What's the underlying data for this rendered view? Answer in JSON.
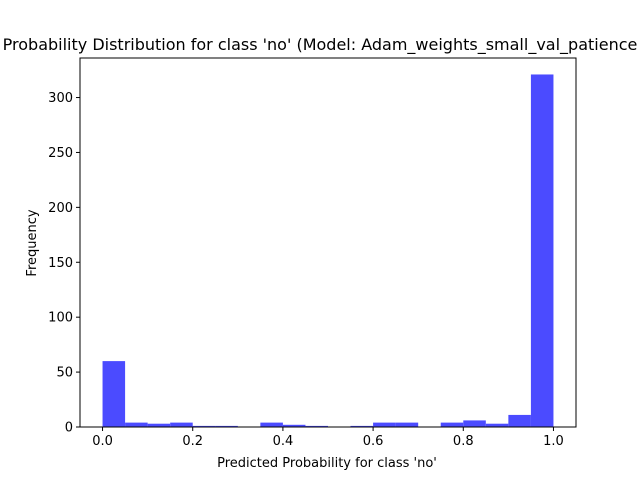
{
  "chart_data": {
    "type": "bar",
    "title": "Probability Distribution for class 'no' (Model: Adam_weights_small_val_patience",
    "xlabel": "Predicted Probability for class 'no'",
    "ylabel": "Frequency",
    "xlim": [
      -0.05,
      1.05
    ],
    "ylim": [
      0,
      336
    ],
    "x_ticks": [
      0.0,
      0.2,
      0.4,
      0.6,
      0.8,
      1.0
    ],
    "x_tick_labels": [
      "0.0",
      "0.2",
      "0.4",
      "0.6",
      "0.8",
      "1.0"
    ],
    "y_ticks": [
      0,
      50,
      100,
      150,
      200,
      250,
      300
    ],
    "y_tick_labels": [
      "0",
      "50",
      "100",
      "150",
      "200",
      "250",
      "300"
    ],
    "bin_edges": [
      0.0,
      0.05,
      0.1,
      0.15,
      0.2,
      0.25,
      0.3,
      0.35,
      0.4,
      0.45,
      0.5,
      0.55,
      0.6,
      0.65,
      0.7,
      0.75,
      0.8,
      0.85,
      0.9,
      0.95,
      1.0
    ],
    "values": [
      60,
      4,
      3,
      4,
      1,
      1,
      0,
      4,
      2,
      1,
      0,
      1,
      4,
      4,
      0,
      4,
      6,
      3,
      11,
      321
    ],
    "bar_color": "#4b4bff",
    "grid": false,
    "legend": "none"
  }
}
